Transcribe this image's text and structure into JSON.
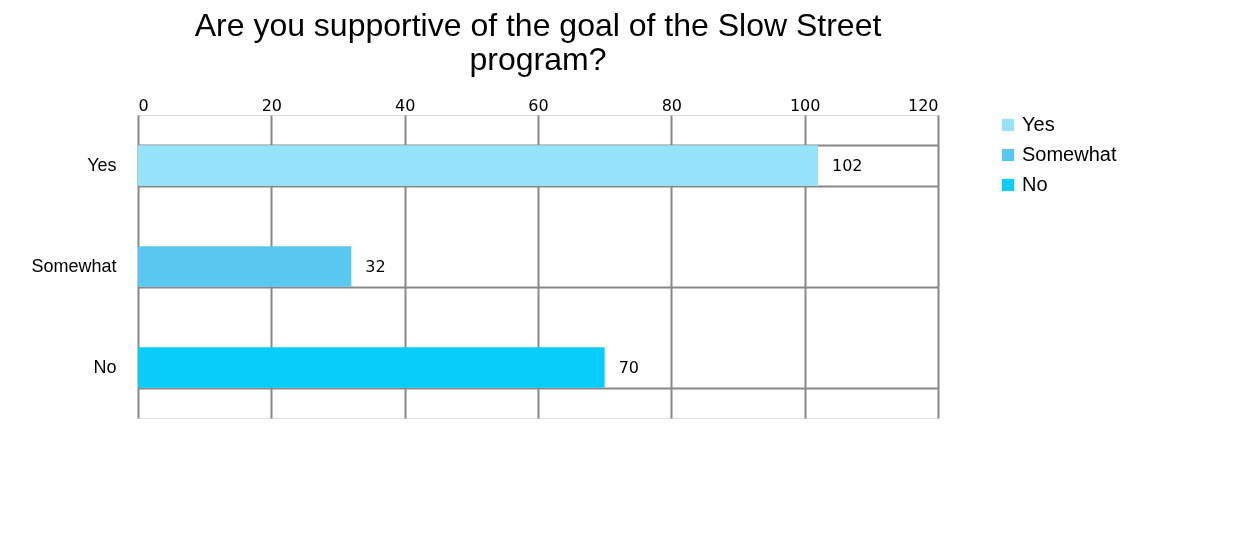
{
  "chart_data": {
    "type": "bar",
    "orientation": "horizontal",
    "title": "Are you supportive of the goal of the Slow Street program?",
    "categories": [
      "Yes",
      "Somewhat",
      "No"
    ],
    "series": [
      {
        "name": "Yes",
        "color": "#97e3fb",
        "values": [
          102,
          null,
          null
        ]
      },
      {
        "name": "Somewhat",
        "color": "#59c8f0",
        "values": [
          null,
          32,
          null
        ]
      },
      {
        "name": "No",
        "color": "#08ccfc",
        "values": [
          null,
          null,
          70
        ]
      }
    ],
    "xlim": [
      0,
      120
    ],
    "xticks": [
      0,
      20,
      40,
      60,
      80,
      100,
      120
    ],
    "grid": true,
    "legend": "right",
    "data_labels": true
  }
}
